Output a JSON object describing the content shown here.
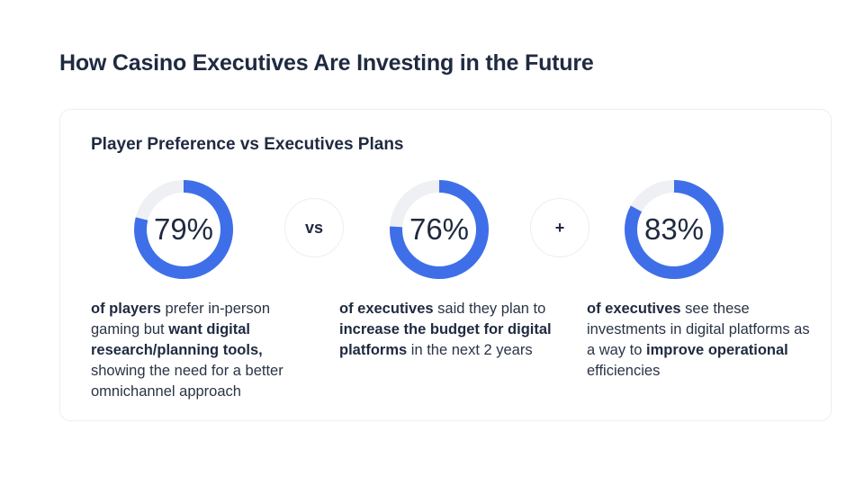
{
  "header": {
    "title": "How Casino Executives Are Investing in the Future"
  },
  "card": {
    "title": "Player Preference vs Executives Plans",
    "separators": [
      "vs",
      "+"
    ]
  },
  "colors": {
    "ring_fill": "#3f6fe8",
    "ring_track": "#eef0f4",
    "text": "#1f2a40"
  },
  "chart_data": [
    {
      "type": "pie",
      "label": "79%",
      "value": 79
    },
    {
      "type": "pie",
      "label": "76%",
      "value": 76
    },
    {
      "type": "pie",
      "label": "83%",
      "value": 83
    }
  ],
  "descriptions": [
    [
      {
        "text": "of players",
        "bold": true
      },
      {
        "text": " prefer in-person gaming but ",
        "bold": false
      },
      {
        "text": "want digital research/planning tools,",
        "bold": true
      },
      {
        "text": " showing the need for a better omnichannel approach",
        "bold": false
      }
    ],
    [
      {
        "text": "of executives",
        "bold": true
      },
      {
        "text": " said they plan to ",
        "bold": false
      },
      {
        "text": "increase the budget for digital platforms",
        "bold": true
      },
      {
        "text": " in the next 2 years",
        "bold": false
      }
    ],
    [
      {
        "text": "of executives",
        "bold": true
      },
      {
        "text": " see these investments in digital platforms as a way to ",
        "bold": false
      },
      {
        "text": "improve operational",
        "bold": true
      },
      {
        "text": " efficiencies",
        "bold": false
      }
    ]
  ]
}
